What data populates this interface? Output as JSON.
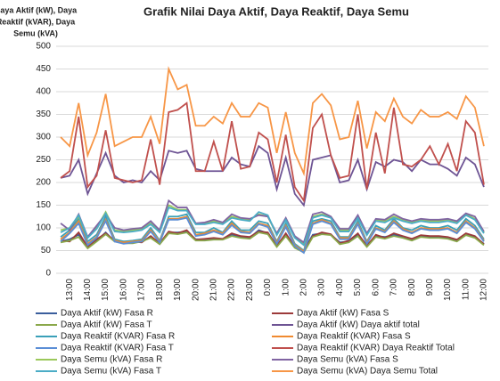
{
  "chart_data": {
    "type": "line",
    "title": "Grafik Nilai Daya Aktif, Daya Reaktif, Daya Semu",
    "y_label_lines": [
      "Daya Aktif (kW), Daya",
      "Reaktif (kVAR), Daya",
      "Semu (kVA)"
    ],
    "categories": [
      null,
      "13:00",
      null,
      "14:00",
      null,
      "15:00",
      null,
      "16:00",
      null,
      "17:00",
      null,
      "18:00",
      null,
      "19:00",
      null,
      "20:00",
      null,
      "21:00",
      null,
      "22:00",
      null,
      "23:00",
      null,
      "0:00",
      null,
      "1:00",
      null,
      "2:00",
      null,
      "3:00",
      null,
      "4:00",
      null,
      "5:00",
      null,
      "6:00",
      null,
      "7:00",
      null,
      "8:00",
      null,
      "9:00",
      null,
      "10:00",
      null,
      "11:00",
      null,
      "12:00"
    ],
    "ylim": [
      0,
      500
    ],
    "yticks": [
      0,
      50,
      100,
      150,
      200,
      250,
      300,
      350,
      400,
      450,
      500
    ],
    "grid": true,
    "series": [
      {
        "name": "Daya Aktif (kW)  Fasa R",
        "color": "#3a5e9c",
        "values": [
          70,
          75,
          85,
          60,
          72,
          90,
          70,
          68,
          68,
          70,
          80,
          65,
          90,
          90,
          92,
          75,
          75,
          76,
          75,
          85,
          80,
          78,
          95,
          88,
          62,
          85,
          60,
          50,
          85,
          88,
          85,
          68,
          70,
          85,
          62,
          82,
          80,
          85,
          80,
          75,
          82,
          80,
          80,
          78,
          72,
          86,
          80,
          65
        ]
      },
      {
        "name": "Daya Aktif (kW)  Fasa S",
        "color": "#9c3a3a",
        "values": [
          72,
          70,
          90,
          58,
          75,
          88,
          72,
          70,
          70,
          68,
          82,
          66,
          92,
          88,
          95,
          74,
          76,
          78,
          76,
          88,
          82,
          80,
          92,
          90,
          60,
          88,
          58,
          48,
          82,
          90,
          86,
          66,
          72,
          88,
          60,
          85,
          78,
          88,
          82,
          76,
          84,
          82,
          82,
          80,
          74,
          88,
          82,
          64
        ]
      },
      {
        "name": "Daya Aktif (kW)  Fasa T",
        "color": "#8aa84a",
        "values": [
          68,
          72,
          80,
          55,
          70,
          86,
          70,
          66,
          66,
          70,
          78,
          64,
          88,
          86,
          90,
          72,
          72,
          74,
          74,
          82,
          78,
          76,
          90,
          86,
          58,
          82,
          56,
          46,
          80,
          86,
          84,
          64,
          68,
          82,
          58,
          80,
          76,
          82,
          78,
          72,
          80,
          78,
          78,
          76,
          70,
          84,
          78,
          62
        ]
      },
      {
        "name": "Daya Aktif (kW)  Daya aktif total",
        "color": "#6e5494",
        "values": [
          210,
          215,
          250,
          175,
          220,
          265,
          215,
          200,
          205,
          200,
          225,
          205,
          270,
          265,
          270,
          230,
          225,
          225,
          225,
          255,
          240,
          235,
          280,
          265,
          185,
          255,
          175,
          150,
          250,
          255,
          260,
          200,
          205,
          250,
          185,
          245,
          235,
          250,
          245,
          225,
          250,
          240,
          240,
          230,
          215,
          255,
          240,
          190
        ]
      },
      {
        "name": "Daya Reaktif (KVAR) Fasa R",
        "color": "#3aa0b8",
        "values": [
          80,
          95,
          120,
          70,
          85,
          125,
          75,
          70,
          72,
          75,
          100,
          72,
          125,
          125,
          130,
          90,
          90,
          100,
          90,
          115,
          95,
          95,
          115,
          110,
          70,
          110,
          65,
          50,
          115,
          120,
          115,
          80,
          80,
          115,
          70,
          105,
          95,
          120,
          100,
          95,
          105,
          100,
          100,
          105,
          95,
          120,
          105,
          75
        ]
      },
      {
        "name": "Daya Reaktif (KVAR) Fasa S",
        "color": "#f08a30",
        "values": [
          75,
          90,
          115,
          65,
          80,
          118,
          72,
          68,
          70,
          72,
          95,
          70,
          120,
          120,
          125,
          85,
          88,
          95,
          88,
          110,
          92,
          90,
          110,
          105,
          68,
          105,
          62,
          48,
          110,
          118,
          110,
          78,
          78,
          110,
          68,
          100,
          92,
          115,
          98,
          90,
          100,
          98,
          98,
          100,
          90,
          115,
          100,
          72
        ]
      },
      {
        "name": "Daya Reaktif (KVAR) Fasa T",
        "color": "#5b8ed6",
        "values": [
          70,
          88,
          110,
          62,
          78,
          115,
          70,
          65,
          68,
          70,
          92,
          68,
          118,
          118,
          122,
          82,
          85,
          92,
          85,
          106,
          90,
          88,
          108,
          102,
          65,
          102,
          60,
          45,
          108,
          115,
          108,
          75,
          75,
          108,
          65,
          98,
          90,
          112,
          95,
          88,
          98,
          95,
          95,
          98,
          88,
          112,
          98,
          70
        ]
      },
      {
        "name": "Daya Reaktif (KVAR) Daya Reaktif Total",
        "color": "#c0504d",
        "values": [
          210,
          225,
          345,
          190,
          215,
          315,
          210,
          205,
          200,
          205,
          295,
          195,
          355,
          360,
          375,
          225,
          225,
          290,
          225,
          335,
          230,
          235,
          310,
          295,
          200,
          305,
          190,
          160,
          320,
          350,
          260,
          210,
          215,
          350,
          185,
          310,
          220,
          365,
          240,
          235,
          250,
          280,
          240,
          285,
          225,
          335,
          310,
          195
        ]
      },
      {
        "name": "Daya Semu (kVA) Fasa R",
        "color": "#9bc85a",
        "values": [
          95,
          100,
          125,
          80,
          100,
          135,
          95,
          92,
          95,
          98,
          110,
          92,
          150,
          140,
          140,
          110,
          110,
          115,
          110,
          125,
          120,
          118,
          130,
          125,
          85,
          120,
          80,
          65,
          125,
          130,
          125,
          95,
          95,
          125,
          85,
          118,
          115,
          125,
          118,
          112,
          118,
          115,
          115,
          118,
          112,
          130,
          120,
          90
        ]
      },
      {
        "name": "Daya Semu (kVA) Fasa S",
        "color": "#8064a2",
        "values": [
          110,
          95,
          130,
          80,
          105,
          130,
          100,
          95,
          98,
          100,
          115,
          95,
          160,
          145,
          145,
          110,
          112,
          118,
          112,
          130,
          122,
          120,
          128,
          125,
          88,
          122,
          82,
          68,
          130,
          135,
          125,
          98,
          98,
          128,
          88,
          120,
          118,
          130,
          120,
          115,
          120,
          118,
          118,
          120,
          115,
          132,
          125,
          92
        ]
      },
      {
        "name": "Daya Semu (kVA)  Fasa T",
        "color": "#4bacc6",
        "values": [
          90,
          100,
          128,
          78,
          98,
          132,
          92,
          90,
          92,
          95,
          108,
          90,
          145,
          138,
          138,
          108,
          108,
          112,
          108,
          122,
          118,
          115,
          135,
          128,
          84,
          118,
          78,
          62,
          122,
          128,
          122,
          92,
          92,
          122,
          84,
          115,
          112,
          122,
          115,
          110,
          115,
          112,
          112,
          115,
          110,
          128,
          118,
          88
        ]
      },
      {
        "name": "Daya Semu (kVA) Daya Semu Total",
        "color": "#f79646",
        "values": [
          300,
          280,
          375,
          260,
          310,
          395,
          280,
          290,
          300,
          300,
          345,
          285,
          450,
          405,
          415,
          325,
          325,
          345,
          330,
          375,
          345,
          345,
          375,
          365,
          265,
          355,
          265,
          220,
          375,
          395,
          370,
          295,
          300,
          380,
          275,
          355,
          335,
          385,
          345,
          330,
          360,
          345,
          345,
          355,
          340,
          390,
          365,
          280
        ]
      }
    ]
  }
}
